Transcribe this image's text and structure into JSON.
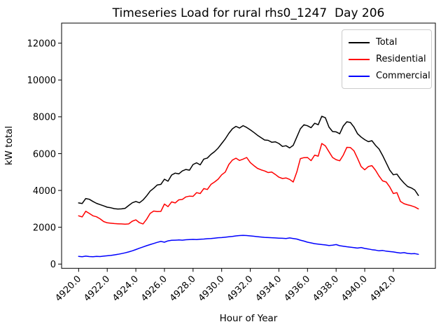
{
  "chart_data": {
    "type": "line",
    "title": "Timeseries Load for rural rhs0_1247  Day 206",
    "xlabel": "Hour of Year",
    "ylabel": "kW total",
    "grid": false,
    "xlim": [
      4918.81,
      4944.94
    ],
    "ylim": [
      -230,
      13090
    ],
    "x_ticks": [
      4920,
      4922,
      4924,
      4926,
      4928,
      4930,
      4932,
      4934,
      4936,
      4938,
      4940,
      4942
    ],
    "x_tick_labels": [
      "4920.0",
      "4922.0",
      "4924.0",
      "4926.0",
      "4928.0",
      "4930.0",
      "4932.0",
      "4934.0",
      "4936.0",
      "4938.0",
      "4940.0",
      "4942.0"
    ],
    "y_ticks": [
      0,
      2000,
      4000,
      6000,
      8000,
      10000,
      12000
    ],
    "y_tick_labels": [
      "0",
      "2000",
      "4000",
      "6000",
      "8000",
      "10000",
      "12000"
    ],
    "x_start": 4920.0,
    "x_step": 0.25,
    "legend": {
      "position": "upper right",
      "entries": [
        {
          "label": "Total",
          "color": "#000000"
        },
        {
          "label": "Residential",
          "color": "#ff0000"
        },
        {
          "label": "Commercial",
          "color": "#0000ff"
        }
      ]
    },
    "series": [
      {
        "name": "Total",
        "color": "#000000",
        "values": [
          3320,
          3290,
          3560,
          3520,
          3400,
          3300,
          3230,
          3160,
          3090,
          3060,
          3010,
          2990,
          3000,
          3030,
          3180,
          3330,
          3400,
          3330,
          3480,
          3700,
          3960,
          4120,
          4300,
          4330,
          4610,
          4500,
          4840,
          4940,
          4900,
          5060,
          5140,
          5100,
          5410,
          5500,
          5390,
          5700,
          5760,
          5960,
          6110,
          6300,
          6550,
          6800,
          7100,
          7350,
          7480,
          7390,
          7520,
          7420,
          7290,
          7150,
          7000,
          6870,
          6740,
          6720,
          6620,
          6640,
          6550,
          6390,
          6430,
          6310,
          6450,
          6900,
          7350,
          7570,
          7510,
          7410,
          7650,
          7570,
          8030,
          7950,
          7440,
          7200,
          7180,
          7080,
          7500,
          7730,
          7690,
          7440,
          7080,
          6900,
          6760,
          6650,
          6700,
          6450,
          6250,
          5900,
          5500,
          5100,
          4850,
          4890,
          4620,
          4400,
          4210,
          4140,
          4020,
          3730
        ]
      },
      {
        "name": "Residential",
        "color": "#ff0000",
        "values": [
          2620,
          2560,
          2870,
          2750,
          2620,
          2570,
          2460,
          2310,
          2240,
          2220,
          2200,
          2190,
          2180,
          2170,
          2180,
          2330,
          2400,
          2250,
          2180,
          2430,
          2750,
          2880,
          2850,
          2860,
          3260,
          3120,
          3380,
          3320,
          3490,
          3510,
          3650,
          3690,
          3680,
          3880,
          3830,
          4100,
          4050,
          4330,
          4460,
          4610,
          4850,
          5000,
          5410,
          5650,
          5750,
          5630,
          5700,
          5790,
          5510,
          5350,
          5200,
          5120,
          5060,
          4970,
          5000,
          4870,
          4720,
          4650,
          4680,
          4600,
          4460,
          5000,
          5730,
          5780,
          5790,
          5620,
          5920,
          5860,
          6550,
          6420,
          6100,
          5790,
          5670,
          5610,
          5920,
          6340,
          6330,
          6150,
          5740,
          5300,
          5120,
          5300,
          5350,
          5100,
          4780,
          4520,
          4460,
          4190,
          3830,
          3880,
          3400,
          3280,
          3220,
          3170,
          3100,
          3000
        ]
      },
      {
        "name": "Commercial",
        "color": "#0000ff",
        "values": [
          420,
          400,
          430,
          410,
          400,
          420,
          410,
          430,
          450,
          470,
          500,
          530,
          570,
          610,
          660,
          720,
          790,
          860,
          930,
          1000,
          1060,
          1120,
          1180,
          1230,
          1190,
          1260,
          1290,
          1300,
          1310,
          1300,
          1320,
          1330,
          1340,
          1330,
          1350,
          1360,
          1380,
          1390,
          1410,
          1430,
          1440,
          1460,
          1480,
          1500,
          1530,
          1550,
          1560,
          1550,
          1530,
          1510,
          1490,
          1470,
          1450,
          1440,
          1430,
          1420,
          1410,
          1400,
          1390,
          1420,
          1390,
          1360,
          1300,
          1250,
          1190,
          1150,
          1110,
          1080,
          1060,
          1040,
          1010,
          1030,
          1060,
          1000,
          970,
          940,
          920,
          890,
          870,
          900,
          850,
          820,
          780,
          760,
          720,
          740,
          700,
          680,
          660,
          630,
          600,
          620,
          580,
          560,
          570,
          530
        ]
      }
    ]
  }
}
